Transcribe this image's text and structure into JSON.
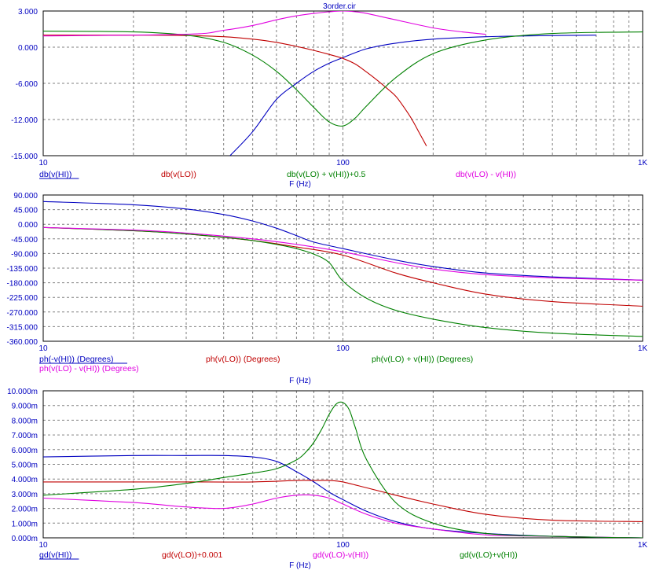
{
  "title": "3order.cir",
  "chart_data": [
    {
      "type": "line",
      "xscale": "log",
      "xlim": [
        10,
        1000
      ],
      "xticks": [
        "10",
        "100",
        "1K"
      ],
      "xlabel": "F (Hz)",
      "ylim": [
        -15,
        3
      ],
      "yticks": [
        "3.000",
        "0.000",
        "-6.000",
        "-12.000",
        "-15.000"
      ],
      "ytick_values": [
        3,
        0,
        -6,
        -12,
        -15
      ],
      "grid": true,
      "series": [
        {
          "name": "db(v(HI))",
          "color": "#0000c0",
          "x": [
            42,
            50,
            60,
            70,
            80,
            90,
            100,
            120,
            150,
            200,
            300,
            500,
            700
          ],
          "y": [
            -15,
            -12,
            -8,
            -6,
            -4.5,
            -3.5,
            -2.8,
            -1.7,
            -1.0,
            -0.5,
            -0.2,
            -0.05,
            0
          ]
        },
        {
          "name": "db(v(LO))",
          "color": "#c00000",
          "x": [
            10,
            20,
            30,
            40,
            50,
            60,
            70,
            80,
            90,
            100,
            110,
            120,
            130,
            140,
            150,
            160,
            170,
            180,
            190
          ],
          "y": [
            0,
            0,
            -0.05,
            -0.2,
            -0.5,
            -0.9,
            -1.4,
            -1.9,
            -2.4,
            -2.9,
            -3.6,
            -4.6,
            -5.6,
            -6.6,
            -7.6,
            -9.0,
            -10.5,
            -12.2,
            -13.8
          ]
        },
        {
          "name": "db(v(LO) + v(HI))+0.5",
          "color": "#008000",
          "x": [
            10,
            20,
            30,
            40,
            50,
            60,
            70,
            80,
            90,
            100,
            110,
            120,
            150,
            200,
            300,
            500,
            1000
          ],
          "y": [
            0.5,
            0.4,
            0.0,
            -0.9,
            -2.5,
            -4.5,
            -6.8,
            -9.0,
            -10.8,
            -11.3,
            -10.3,
            -8.8,
            -5.3,
            -2.3,
            -0.6,
            0.2,
            0.4
          ]
        },
        {
          "name": "db(v(LO) - v(HI))",
          "color": "#e000e0",
          "x": [
            10,
            30,
            40,
            50,
            60,
            70,
            80,
            90,
            100,
            110,
            120,
            150,
            200,
            250,
            300
          ],
          "y": [
            -0.1,
            0.1,
            0.6,
            1.2,
            1.9,
            2.4,
            2.7,
            2.9,
            3.0,
            2.9,
            2.7,
            1.9,
            0.9,
            0.4,
            0.1
          ]
        }
      ]
    },
    {
      "type": "line",
      "xscale": "log",
      "xlim": [
        10,
        1000
      ],
      "xticks": [
        "10",
        "100",
        "1K"
      ],
      "xlabel": "F (Hz)",
      "ylim": [
        -360,
        90
      ],
      "yticks": [
        "90.000",
        "45.000",
        "0.000",
        "-45.000",
        "-90.000",
        "-135.000",
        "-180.000",
        "-225.000",
        "-270.000",
        "-315.000",
        "-360.000"
      ],
      "ytick_values": [
        90,
        45,
        0,
        -45,
        -90,
        -135,
        -180,
        -225,
        -270,
        -315,
        -360
      ],
      "grid": true,
      "series": [
        {
          "name": "ph(-v(HI)) (Degrees)",
          "color": "#0000c0",
          "x": [
            10,
            20,
            30,
            40,
            50,
            60,
            70,
            80,
            100,
            150,
            200,
            300,
            500,
            1000
          ],
          "y": [
            70,
            60,
            47,
            30,
            10,
            -12,
            -35,
            -55,
            -75,
            -110,
            -130,
            -150,
            -162,
            -172
          ]
        },
        {
          "name": "ph(v(LO)) (Degrees)",
          "color": "#c00000",
          "x": [
            10,
            20,
            30,
            50,
            70,
            100,
            150,
            200,
            300,
            500,
            1000
          ],
          "y": [
            -10,
            -20,
            -30,
            -50,
            -70,
            -95,
            -150,
            -180,
            -215,
            -238,
            -252
          ]
        },
        {
          "name": "ph(v(LO) + v(HI)) (Degrees)",
          "color": "#008000",
          "x": [
            10,
            20,
            30,
            40,
            50,
            60,
            70,
            80,
            90,
            100,
            120,
            150,
            200,
            300,
            500,
            1000
          ],
          "y": [
            -10,
            -20,
            -30,
            -40,
            -50,
            -62,
            -75,
            -92,
            -118,
            -175,
            -228,
            -265,
            -292,
            -318,
            -335,
            -345
          ]
        },
        {
          "name": "ph(v(LO) - v(HI)) (Degrees)",
          "color": "#e000e0",
          "x": [
            10,
            20,
            30,
            50,
            70,
            100,
            150,
            200,
            300,
            500,
            1000
          ],
          "y": [
            -10,
            -18,
            -27,
            -45,
            -62,
            -85,
            -118,
            -138,
            -155,
            -165,
            -172
          ]
        }
      ]
    },
    {
      "type": "line",
      "xscale": "log",
      "xlim": [
        10,
        1000
      ],
      "xticks": [
        "10",
        "100",
        "1K"
      ],
      "xlabel": "F (Hz)",
      "ylim": [
        0,
        0.01
      ],
      "yticks": [
        "10.000m",
        "9.000m",
        "8.000m",
        "7.000m",
        "6.000m",
        "5.000m",
        "4.000m",
        "3.000m",
        "2.000m",
        "1.000m",
        "0.000m"
      ],
      "ytick_values": [
        0.01,
        0.009,
        0.008,
        0.007,
        0.006,
        0.005,
        0.004,
        0.003,
        0.002,
        0.001,
        0
      ],
      "grid": true,
      "series": [
        {
          "name": "gd(v(HI))",
          "color": "#0000c0",
          "x": [
            10,
            20,
            30,
            40,
            50,
            60,
            70,
            80,
            90,
            100,
            120,
            150,
            200,
            300,
            500,
            1000
          ],
          "y": [
            0.0055,
            0.0056,
            0.0056,
            0.0056,
            0.0055,
            0.0052,
            0.0045,
            0.0038,
            0.0031,
            0.0026,
            0.0018,
            0.0011,
            0.0006,
            0.0003,
            0.0001,
            0
          ]
        },
        {
          "name": "gd(v(LO))+0.001",
          "color": "#c00000",
          "x": [
            10,
            20,
            30,
            50,
            70,
            80,
            90,
            100,
            120,
            150,
            200,
            300,
            500,
            1000
          ],
          "y": [
            0.0038,
            0.0038,
            0.0038,
            0.0038,
            0.0039,
            0.0039,
            0.0039,
            0.0038,
            0.0034,
            0.0029,
            0.0023,
            0.0016,
            0.0012,
            0.0011
          ]
        },
        {
          "name": "gd(v(LO)-v(HI))",
          "color": "#e000e0",
          "x": [
            10,
            20,
            30,
            40,
            50,
            60,
            70,
            80,
            90,
            100,
            120,
            150,
            200,
            300,
            500,
            1000
          ],
          "y": [
            0.0027,
            0.0024,
            0.0021,
            0.002,
            0.0023,
            0.0027,
            0.0029,
            0.0029,
            0.0027,
            0.0023,
            0.0016,
            0.001,
            0.0006,
            0.0002,
            0.0001,
            0
          ]
        },
        {
          "name": "gd(v(LO)+v(HI))",
          "color": "#008000",
          "x": [
            10,
            20,
            30,
            40,
            50,
            60,
            70,
            75,
            80,
            85,
            90,
            95,
            100,
            105,
            110,
            120,
            150,
            200,
            300,
            500,
            1000
          ],
          "y": [
            0.0029,
            0.0033,
            0.0037,
            0.0041,
            0.0044,
            0.0047,
            0.0053,
            0.0058,
            0.0065,
            0.0074,
            0.0084,
            0.0091,
            0.0092,
            0.0087,
            0.0075,
            0.0053,
            0.0024,
            0.001,
            0.0003,
            0.0001,
            0
          ]
        }
      ]
    }
  ]
}
